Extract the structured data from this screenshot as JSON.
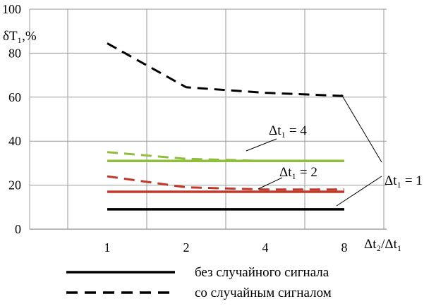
{
  "chart_data": {
    "type": "line",
    "ylabel": "δT₁,%",
    "ylim": [
      0,
      100
    ],
    "yticks": [
      0,
      20,
      40,
      60,
      80,
      100
    ],
    "xlabel": "Δt₂/Δt₁",
    "x": [
      "1",
      "2",
      "4",
      "8"
    ],
    "grid": true,
    "series": [
      {
        "color": "#e3001b",
        "style": "dashed",
        "values": [
          84.5,
          64.5,
          62,
          60.5
        ]
      },
      {
        "color": "#000000",
        "style": "solid",
        "values": [
          9,
          9,
          9,
          9
        ]
      },
      {
        "color": "#8fbe3f",
        "style": "dashed",
        "values": [
          35,
          32,
          31,
          31
        ]
      },
      {
        "color": "#8fbe3f",
        "style": "solid",
        "values": [
          31,
          31,
          31,
          31
        ]
      },
      {
        "color": "#c0392b",
        "style": "dashed",
        "values": [
          24,
          19,
          18,
          18
        ]
      },
      {
        "color": "#c0392b",
        "style": "solid",
        "values": [
          17,
          17,
          17,
          17
        ]
      }
    ],
    "annotations": [
      {
        "text": "Δt₁ = 4"
      },
      {
        "text": "Δt₁ = 2"
      },
      {
        "text": "Δt₁ = 1"
      }
    ],
    "legend": [
      {
        "label": "без случайного сигнала",
        "style": "solid"
      },
      {
        "label": "со случайным сигналом",
        "style": "dashed"
      }
    ]
  }
}
